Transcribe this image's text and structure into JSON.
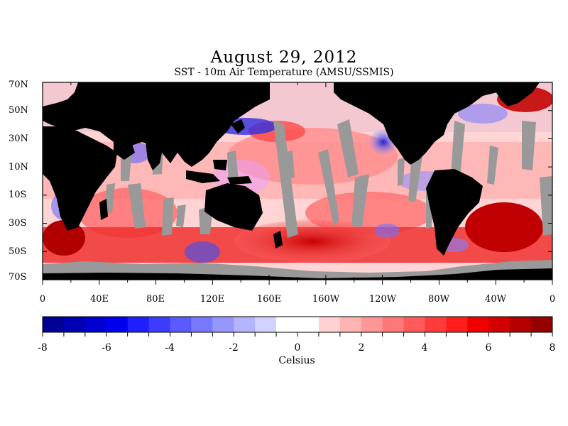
{
  "title": "August 29, 2012",
  "subtitle": "SST - 10m Air Temperature (AMSU/SSMIS)",
  "map": {
    "lat_labels": [
      "70N",
      "50N",
      "30N",
      "10N",
      "10S",
      "30S",
      "50S",
      "70S"
    ],
    "lon_labels": [
      "0",
      "40E",
      "80E",
      "120E",
      "160E",
      "160W",
      "120W",
      "80W",
      "40W",
      "0"
    ],
    "colors": {
      "land": "#000000",
      "no_data": "#999999",
      "warm": "#e01010",
      "cool": "#2020e0",
      "neutral": "#ffffff"
    }
  },
  "colorbar": {
    "tick_labels": [
      "-8",
      "-6",
      "-4",
      "-2",
      "0",
      "2",
      "4",
      "6",
      "8"
    ],
    "units": "Celsius",
    "min": -8,
    "max": 8,
    "colors": [
      "#000096",
      "#0000b4",
      "#0000d2",
      "#0000f0",
      "#1e1eff",
      "#3c3cff",
      "#5a5aff",
      "#7878ff",
      "#9696ff",
      "#b4b4ff",
      "#d2d2ff",
      "#ffffff",
      "#ffffff",
      "#ffd2d2",
      "#ffb4b4",
      "#ff9696",
      "#ff7878",
      "#ff5a5a",
      "#ff3c3c",
      "#ff1e1e",
      "#f00000",
      "#d20000",
      "#b40000",
      "#960000"
    ]
  }
}
